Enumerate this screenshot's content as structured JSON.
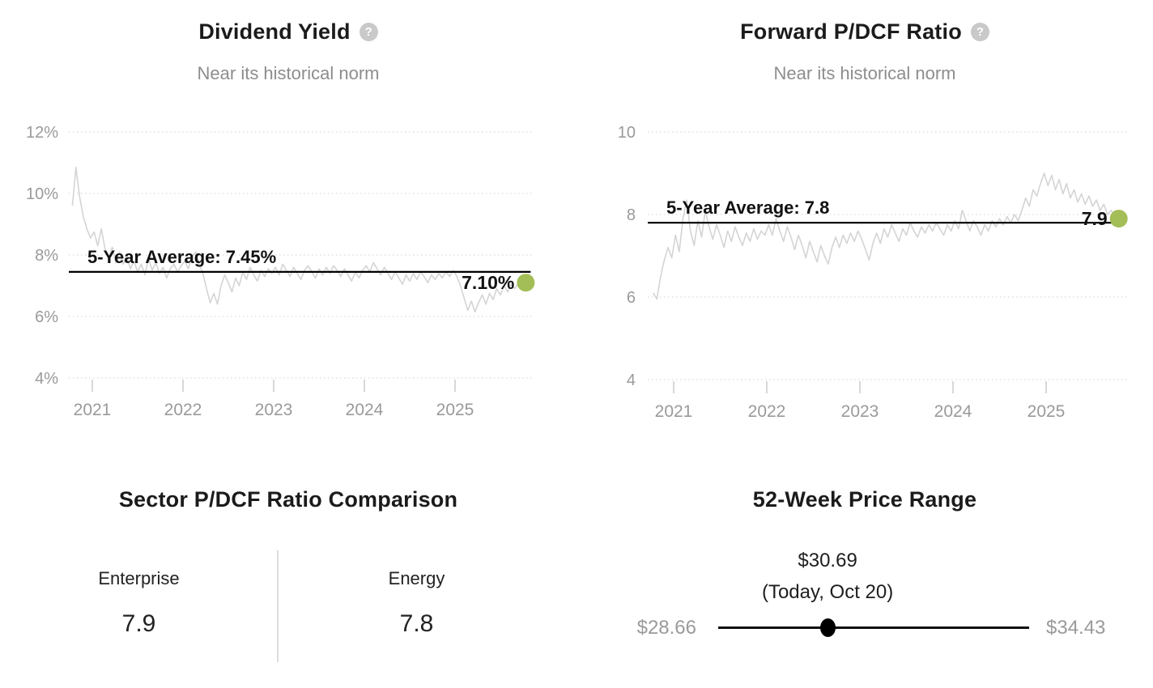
{
  "colors": {
    "series_line": "#d4d4d4",
    "grid": "#e1e1e1",
    "axis_text": "#9a9a9a",
    "tick_mark": "#d8d8d8",
    "average_line": "#000000",
    "label_text": "#111111",
    "accent_dot": "#a4be57",
    "divider": "#dddddd",
    "slider": "#111111",
    "title_text": "#1b1b1b",
    "subtitle_text": "#8d8d8d",
    "help_icon_bg": "#c9c9c9"
  },
  "chart_data": [
    {
      "type": "line",
      "title": "Dividend Yield",
      "help_icon": "?",
      "subtitle": "Near its historical norm",
      "xlabel": "",
      "ylabel": "Dividend Yield",
      "ylim": [
        4,
        12
      ],
      "xlim": [
        2020.78,
        2025.9
      ],
      "grid": "dotted-horizontal",
      "legend": "none",
      "y_ticks": [
        {
          "value": 12,
          "label": "12%"
        },
        {
          "value": 10,
          "label": "10%"
        },
        {
          "value": 8,
          "label": "8%"
        },
        {
          "value": 6,
          "label": "6%"
        },
        {
          "value": 4,
          "label": "4%"
        }
      ],
      "x_ticks": [
        2021,
        2022,
        2023,
        2024,
        2025
      ],
      "average": {
        "value": 7.45,
        "label": "5-Year Average: 7.45%"
      },
      "current": {
        "value": 7.1,
        "label": "7.10%"
      },
      "series": {
        "name": "Dividend Yield (%)",
        "x_start": 2020.78,
        "x_step": 0.04,
        "values": [
          9.6,
          10.85,
          9.9,
          9.25,
          8.85,
          8.55,
          8.75,
          8.3,
          8.85,
          8.2,
          7.9,
          8.25,
          7.75,
          8.1,
          7.7,
          7.95,
          7.55,
          7.8,
          7.45,
          7.7,
          7.35,
          7.9,
          7.5,
          7.75,
          7.4,
          7.6,
          7.25,
          7.55,
          7.7,
          7.45,
          7.65,
          7.8,
          7.55,
          7.95,
          8.1,
          7.7,
          7.4,
          6.9,
          6.45,
          6.75,
          6.4,
          7.0,
          7.35,
          7.1,
          6.8,
          7.25,
          7.0,
          7.45,
          7.2,
          7.6,
          7.35,
          7.15,
          7.5,
          7.3,
          7.55,
          7.4,
          7.6,
          7.35,
          7.7,
          7.5,
          7.3,
          7.6,
          7.4,
          7.2,
          7.5,
          7.65,
          7.45,
          7.25,
          7.55,
          7.35,
          7.6,
          7.4,
          7.65,
          7.5,
          7.3,
          7.55,
          7.35,
          7.15,
          7.45,
          7.25,
          7.5,
          7.65,
          7.45,
          7.75,
          7.55,
          7.35,
          7.6,
          7.4,
          7.2,
          7.45,
          7.25,
          7.05,
          7.35,
          7.15,
          7.4,
          7.2,
          7.45,
          7.3,
          7.1,
          7.35,
          7.2,
          7.4,
          7.25,
          7.45,
          7.3,
          7.5,
          7.3,
          7.0,
          6.6,
          6.2,
          6.5,
          6.15,
          6.45,
          6.7,
          6.4,
          6.75,
          6.55,
          6.9,
          6.7,
          7.0,
          6.8,
          7.05,
          6.9,
          7.1,
          7.0,
          7.1
        ]
      }
    },
    {
      "type": "line",
      "title": "Forward P/DCF Ratio",
      "help_icon": "?",
      "subtitle": "Near its historical norm",
      "xlabel": "",
      "ylabel": "Forward P/DCF Ratio",
      "ylim": [
        4,
        10
      ],
      "xlim": [
        2020.78,
        2025.9
      ],
      "grid": "dotted-horizontal",
      "legend": "none",
      "y_ticks": [
        {
          "value": 10,
          "label": "10"
        },
        {
          "value": 8,
          "label": "8"
        },
        {
          "value": 6,
          "label": "6"
        },
        {
          "value": 4,
          "label": "4"
        }
      ],
      "x_ticks": [
        2021,
        2022,
        2023,
        2024,
        2025
      ],
      "average": {
        "value": 7.8,
        "label": "5-Year Average: 7.8"
      },
      "current": {
        "value": 7.9,
        "label": "7.9"
      },
      "series": {
        "name": "Forward P/DCF",
        "x_start": 2020.78,
        "x_step": 0.04,
        "values": [
          6.1,
          5.95,
          6.5,
          6.9,
          7.2,
          6.95,
          7.5,
          7.1,
          7.9,
          8.35,
          7.6,
          7.25,
          7.85,
          7.45,
          8.1,
          7.7,
          7.4,
          7.75,
          7.5,
          7.2,
          7.6,
          7.35,
          7.7,
          7.45,
          7.25,
          7.55,
          7.35,
          7.65,
          7.4,
          7.6,
          7.5,
          7.75,
          7.5,
          7.9,
          7.6,
          7.35,
          7.7,
          7.45,
          7.15,
          7.5,
          7.25,
          6.95,
          7.35,
          7.1,
          6.85,
          7.25,
          7.0,
          6.8,
          7.2,
          7.45,
          7.2,
          7.5,
          7.3,
          7.55,
          7.35,
          7.6,
          7.4,
          7.15,
          6.9,
          7.3,
          7.55,
          7.3,
          7.65,
          7.45,
          7.75,
          7.55,
          7.35,
          7.65,
          7.5,
          7.8,
          7.6,
          7.45,
          7.7,
          7.55,
          7.75,
          7.6,
          7.8,
          7.65,
          7.5,
          7.75,
          7.6,
          7.85,
          7.65,
          8.1,
          7.85,
          7.6,
          7.85,
          7.7,
          7.5,
          7.75,
          7.6,
          7.85,
          7.7,
          7.9,
          7.75,
          7.95,
          7.8,
          8.0,
          7.85,
          8.1,
          8.4,
          8.2,
          8.6,
          8.45,
          8.75,
          9.0,
          8.7,
          8.95,
          8.6,
          8.85,
          8.5,
          8.75,
          8.4,
          8.6,
          8.3,
          8.5,
          8.25,
          8.45,
          8.2,
          8.35,
          8.1,
          8.25,
          8.0,
          8.1,
          7.95,
          7.9
        ]
      }
    }
  ],
  "sector_comparison": {
    "title": "Sector P/DCF Ratio Comparison",
    "columns": [
      {
        "label": "Enterprise",
        "value": "7.9"
      },
      {
        "label": "Energy",
        "value": "7.8"
      }
    ]
  },
  "price_range": {
    "title": "52-Week Price Range",
    "current_price": "$30.69",
    "current_note": "(Today, Oct 20)",
    "current_value": 30.69,
    "low": "$28.66",
    "low_value": 28.66,
    "high": "$34.43",
    "high_value": 34.43
  }
}
